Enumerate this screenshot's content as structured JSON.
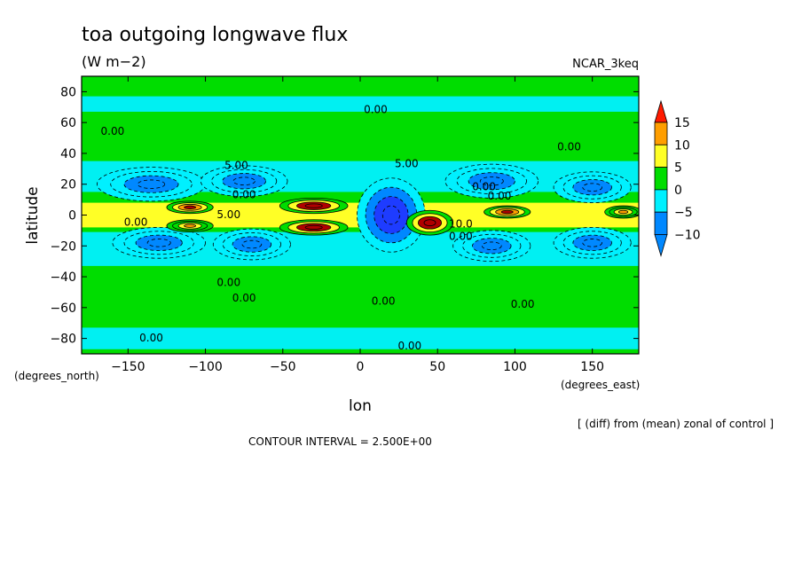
{
  "chart_data": {
    "type": "heatmap",
    "title": "toa outgoing longwave flux",
    "units": "(W m−2)",
    "model_label": "NCAR_3keq",
    "xlabel": "lon",
    "ylabel": "latitude",
    "x_unit_label": "(degrees_east)",
    "y_unit_label": "(degrees_north)",
    "xlim": [
      -180,
      180
    ],
    "ylim": [
      -90,
      90
    ],
    "x_ticks": [
      -150,
      -100,
      -50,
      0,
      50,
      100,
      150
    ],
    "y_ticks": [
      -80,
      -60,
      -40,
      -20,
      0,
      20,
      40,
      60,
      80
    ],
    "x_tick_labels": [
      "−150",
      "−100",
      "−50",
      "0",
      "50",
      "100",
      "150"
    ],
    "y_tick_labels": [
      "−80",
      "−60",
      "−40",
      "−20",
      "0",
      "20",
      "40",
      "60",
      "80"
    ],
    "colorbar": {
      "levels": [
        15,
        10,
        5,
        0,
        -5,
        -10
      ],
      "level_labels": [
        "15",
        "10",
        "5",
        "0",
        "−5",
        "−10"
      ],
      "colors": [
        "#ff1a00",
        "#ff9e00",
        "#ffff26",
        "#00dd00",
        "#00f0ff",
        "#0088ff",
        "#1e3cff",
        "#b00000",
        "#ff0000"
      ]
    },
    "contour_interval_text": "CONTOUR INTERVAL = 2.500E+00",
    "subtitle_note": "[ (diff) from (mean) zonal of control ]",
    "contour_labels": [
      {
        "text": "0.00",
        "lon": -160,
        "lat": 52
      },
      {
        "text": "0.00",
        "lon": 10,
        "lat": 66
      },
      {
        "text": "0.00",
        "lon": 135,
        "lat": 42
      },
      {
        "text": "5.00",
        "lon": -80,
        "lat": 30
      },
      {
        "text": "5.00",
        "lon": 30,
        "lat": 31
      },
      {
        "text": "0.00",
        "lon": -75,
        "lat": 11
      },
      {
        "text": "0.00",
        "lon": 80,
        "lat": 16
      },
      {
        "text": "0.00",
        "lon": 90,
        "lat": 10
      },
      {
        "text": "5.00",
        "lon": -85,
        "lat": -2
      },
      {
        "text": "0.00",
        "lon": -145,
        "lat": -7
      },
      {
        "text": "10.0",
        "lon": 65,
        "lat": -8
      },
      {
        "text": "0.00",
        "lon": 65,
        "lat": -16
      },
      {
        "text": "0.00",
        "lon": -85,
        "lat": -46
      },
      {
        "text": "0.00",
        "lon": -75,
        "lat": -56
      },
      {
        "text": "0.00",
        "lon": 15,
        "lat": -58
      },
      {
        "text": "0.00",
        "lon": 105,
        "lat": -60
      },
      {
        "text": "0.00",
        "lon": -135,
        "lat": -82
      },
      {
        "text": "0.00",
        "lon": 32,
        "lat": -87
      }
    ],
    "field_features": [
      {
        "lon": -135,
        "lat": 20,
        "value": -9,
        "rx": 35,
        "ry": 11
      },
      {
        "lon": -75,
        "lat": 22,
        "value": -8,
        "rx": 28,
        "ry": 10
      },
      {
        "lon": 85,
        "lat": 22,
        "value": -8,
        "rx": 30,
        "ry": 11
      },
      {
        "lon": 150,
        "lat": 18,
        "value": -8,
        "rx": 25,
        "ry": 10
      },
      {
        "lon": -130,
        "lat": -18,
        "value": -7,
        "rx": 30,
        "ry": 10
      },
      {
        "lon": -70,
        "lat": -19,
        "value": -7,
        "rx": 25,
        "ry": 10
      },
      {
        "lon": 85,
        "lat": -20,
        "value": -8,
        "rx": 25,
        "ry": 10
      },
      {
        "lon": 150,
        "lat": -18,
        "value": -7,
        "rx": 25,
        "ry": 10
      },
      {
        "lon": 20,
        "lat": 0,
        "value": -15,
        "rx": 22,
        "ry": 24
      },
      {
        "lon": -30,
        "lat": 6,
        "value": 14,
        "rx": 22,
        "ry": 5
      },
      {
        "lon": -30,
        "lat": -8,
        "value": 14,
        "rx": 22,
        "ry": 5
      },
      {
        "lon": 45,
        "lat": -5,
        "value": 14,
        "rx": 15,
        "ry": 8
      },
      {
        "lon": 95,
        "lat": 2,
        "value": 12,
        "rx": 15,
        "ry": 4
      },
      {
        "lon": -110,
        "lat": 5,
        "value": 10,
        "rx": 15,
        "ry": 4
      },
      {
        "lon": -110,
        "lat": -7,
        "value": 9,
        "rx": 15,
        "ry": 4
      },
      {
        "lon": 170,
        "lat": 2,
        "value": 8,
        "rx": 12,
        "ry": 4
      }
    ]
  }
}
